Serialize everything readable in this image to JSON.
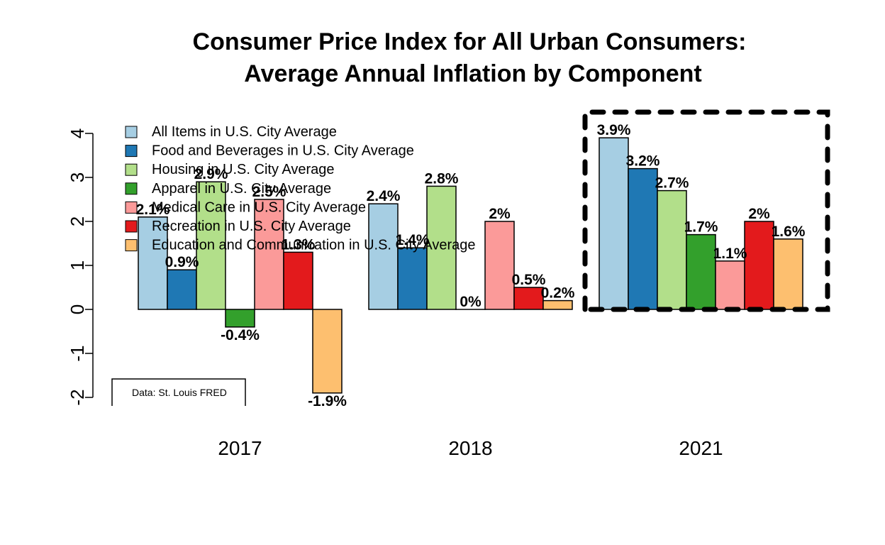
{
  "chart_data": {
    "type": "bar",
    "title": "Consumer Price Index for All Urban Consumers:",
    "subtitle": "Average Annual Inflation by Component",
    "xlabel": "",
    "ylabel": "",
    "ylim": [
      -2,
      4
    ],
    "yticks": [
      "-2",
      "-1",
      "0",
      "1",
      "2",
      "3",
      "4"
    ],
    "grid": false,
    "legend_position": "top-left",
    "categories": [
      "2017",
      "2018",
      "2021"
    ],
    "series": [
      {
        "name": "All Items in U.S. City Average",
        "color": "#A6CEE3",
        "values": [
          2.1,
          2.4,
          3.9
        ],
        "labels": [
          "2.1%",
          "2.4%",
          "3.9%"
        ]
      },
      {
        "name": "Food and Beverages in U.S. City Average",
        "color": "#1F78B4",
        "values": [
          0.9,
          1.4,
          3.2
        ],
        "labels": [
          "0.9%",
          "1.4%",
          "3.2%"
        ]
      },
      {
        "name": "Housing in U.S. City Average",
        "color": "#B2DF8A",
        "values": [
          2.9,
          2.8,
          2.7
        ],
        "labels": [
          "2.9%",
          "2.8%",
          "2.7%"
        ]
      },
      {
        "name": "Apparel in U.S. City Average",
        "color": "#33A02C",
        "values": [
          -0.4,
          0.0,
          1.7
        ],
        "labels": [
          "-0.4%",
          "0%",
          "1.7%"
        ]
      },
      {
        "name": "Medical Care in U.S. City Average",
        "color": "#FB9A99",
        "values": [
          2.5,
          2.0,
          1.1
        ],
        "labels": [
          "2.5%",
          "2%",
          "1.1%"
        ]
      },
      {
        "name": "Recreation in U.S. City Average",
        "color": "#E31A1C",
        "values": [
          1.3,
          0.5,
          2.0
        ],
        "labels": [
          "1.3%",
          "0.5%",
          "2%"
        ]
      },
      {
        "name": "Education and Communication in U.S. City Average",
        "color": "#FDBF6F",
        "values": [
          -1.9,
          0.2,
          1.6
        ],
        "labels": [
          "-1.9%",
          "0.2%",
          "1.6%"
        ]
      }
    ],
    "highlighted_category": "2021",
    "source_note": "Data: St. Louis FRED"
  }
}
